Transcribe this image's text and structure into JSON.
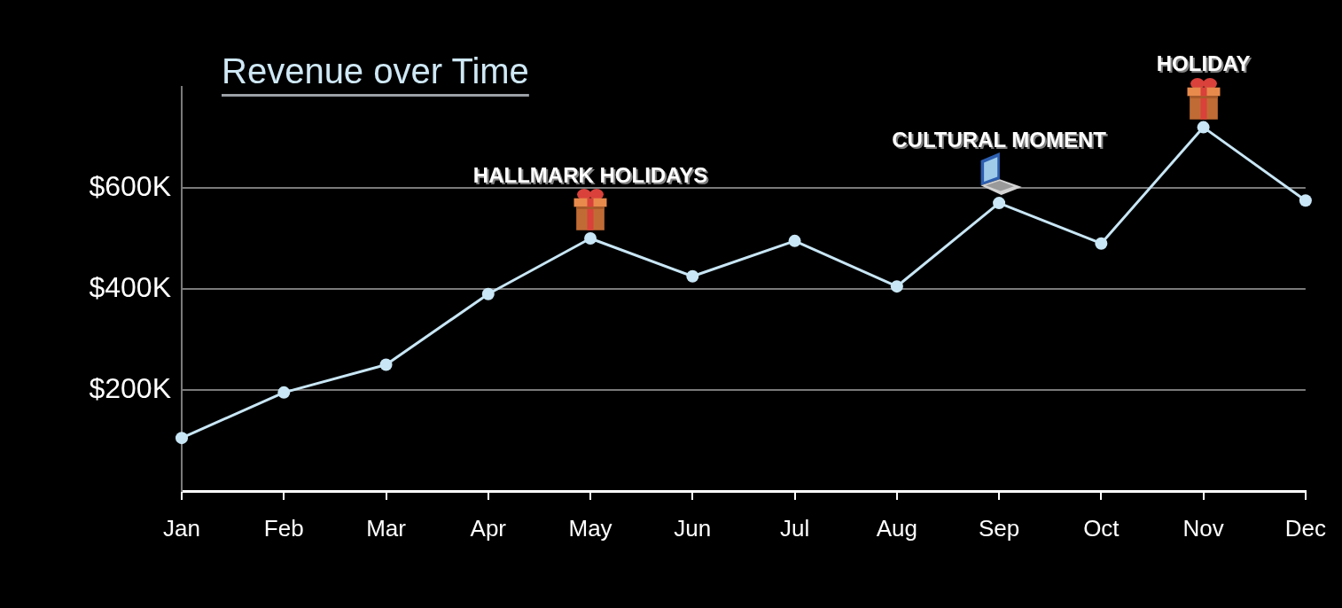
{
  "chart_data": {
    "type": "line",
    "title": "Revenue over Time",
    "categories": [
      "Jan",
      "Feb",
      "Mar",
      "Apr",
      "May",
      "Jun",
      "Jul",
      "Aug",
      "Sep",
      "Oct",
      "Nov",
      "Dec"
    ],
    "series": [
      {
        "color": "#c8e6f5",
        "values": [
          105,
          195,
          250,
          390,
          500,
          425,
          495,
          405,
          570,
          490,
          720,
          575
        ]
      }
    ],
    "ylim": [
      0,
      800
    ],
    "yticks": [
      {
        "value": 200,
        "label": "$200K"
      },
      {
        "value": 400,
        "label": "$400K"
      },
      {
        "value": 600,
        "label": "$600K"
      }
    ],
    "grid": "y",
    "marker": "circle",
    "line_style": "solid",
    "annotations": [
      {
        "text": "HALLMARK HOLIDAYS",
        "x": "May",
        "y": 500
      },
      {
        "text": "CULTURAL MOMENT",
        "x": "Sep",
        "y": 570
      },
      {
        "text": "HOLIDAY",
        "x": "Nov",
        "y": 720
      }
    ]
  }
}
